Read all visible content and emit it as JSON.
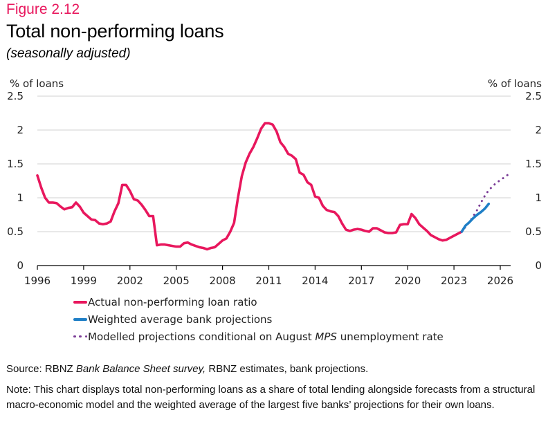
{
  "header": {
    "figure_label": "Figure 2.12",
    "title": "Total non-performing loans",
    "subtitle": "(seasonally adjusted)"
  },
  "chart_data": {
    "type": "line",
    "title": "Total non-performing loans",
    "subtitle": "(seasonally adjusted)",
    "ylabel_left": "% of loans",
    "ylabel_right": "% of loans",
    "xlabel": "",
    "ylim": [
      0,
      2.5
    ],
    "xlim": [
      1996,
      2026.7
    ],
    "yticks": [
      "0",
      "0.5",
      "1",
      "1.5",
      "2",
      "2.5"
    ],
    "xticks": [
      "1996",
      "1999",
      "2002",
      "2005",
      "2008",
      "2011",
      "2014",
      "2017",
      "2020",
      "2023",
      "2026"
    ],
    "grid": true,
    "legend_position": "bottom",
    "series": [
      {
        "name": "Actual non-performing loan ratio",
        "color": "#e8175d",
        "style": "solid",
        "x": [
          1996.0,
          1996.25,
          1996.5,
          1996.75,
          1997.0,
          1997.25,
          1997.5,
          1997.75,
          1998.0,
          1998.25,
          1998.5,
          1998.75,
          1999.0,
          1999.25,
          1999.5,
          1999.75,
          2000.0,
          2000.25,
          2000.5,
          2000.75,
          2001.0,
          2001.25,
          2001.5,
          2001.75,
          2002.0,
          2002.25,
          2002.5,
          2002.75,
          2003.0,
          2003.25,
          2003.5,
          2003.75,
          2004.0,
          2004.25,
          2004.5,
          2004.75,
          2005.0,
          2005.25,
          2005.5,
          2005.75,
          2006.0,
          2006.25,
          2006.5,
          2006.75,
          2007.0,
          2007.25,
          2007.5,
          2007.75,
          2008.0,
          2008.25,
          2008.5,
          2008.75,
          2009.0,
          2009.25,
          2009.5,
          2009.75,
          2010.0,
          2010.25,
          2010.5,
          2010.75,
          2011.0,
          2011.25,
          2011.5,
          2011.75,
          2012.0,
          2012.25,
          2012.5,
          2012.75,
          2013.0,
          2013.25,
          2013.5,
          2013.75,
          2014.0,
          2014.25,
          2014.5,
          2014.75,
          2015.0,
          2015.25,
          2015.5,
          2015.75,
          2016.0,
          2016.25,
          2016.5,
          2016.75,
          2017.0,
          2017.25,
          2017.5,
          2017.75,
          2018.0,
          2018.25,
          2018.5,
          2018.75,
          2019.0,
          2019.25,
          2019.5,
          2019.75,
          2020.0,
          2020.25,
          2020.5,
          2020.75,
          2021.0,
          2021.25,
          2021.5,
          2021.75,
          2022.0,
          2022.25,
          2022.5,
          2022.75,
          2023.0,
          2023.25,
          2023.5
        ],
        "values": [
          1.33,
          1.15,
          1.0,
          0.93,
          0.93,
          0.92,
          0.87,
          0.83,
          0.85,
          0.86,
          0.93,
          0.87,
          0.78,
          0.73,
          0.68,
          0.67,
          0.62,
          0.61,
          0.62,
          0.65,
          0.8,
          0.92,
          1.19,
          1.19,
          1.1,
          0.98,
          0.96,
          0.9,
          0.82,
          0.73,
          0.73,
          0.3,
          0.31,
          0.31,
          0.3,
          0.29,
          0.28,
          0.28,
          0.33,
          0.34,
          0.31,
          0.29,
          0.27,
          0.26,
          0.24,
          0.26,
          0.27,
          0.32,
          0.37,
          0.4,
          0.5,
          0.63,
          1.0,
          1.32,
          1.52,
          1.65,
          1.75,
          1.88,
          2.02,
          2.1,
          2.1,
          2.08,
          1.98,
          1.82,
          1.75,
          1.65,
          1.62,
          1.57,
          1.37,
          1.34,
          1.23,
          1.19,
          1.02,
          1.0,
          0.88,
          0.82,
          0.8,
          0.79,
          0.73,
          0.62,
          0.53,
          0.51,
          0.53,
          0.54,
          0.53,
          0.51,
          0.5,
          0.55,
          0.55,
          0.52,
          0.49,
          0.48,
          0.48,
          0.49,
          0.6,
          0.61,
          0.61,
          0.76,
          0.7,
          0.61,
          0.56,
          0.51,
          0.45,
          0.42,
          0.39,
          0.37,
          0.38,
          0.41,
          0.44,
          0.47,
          0.5
        ]
      },
      {
        "name": "Weighted average bank projections",
        "color": "#1f7fc6",
        "style": "solid",
        "x": [
          2023.5,
          2023.75,
          2024.0,
          2024.25,
          2024.5,
          2024.75,
          2025.0,
          2025.25
        ],
        "values": [
          0.5,
          0.59,
          0.64,
          0.7,
          0.75,
          0.79,
          0.84,
          0.91
        ]
      },
      {
        "name": "Modelled projections conditional on August MPS unemployment rate",
        "color": "#7a3b96",
        "style": "dotted",
        "x": [
          2023.5,
          2023.75,
          2024.0,
          2024.25,
          2024.5,
          2024.75,
          2025.0,
          2025.25,
          2025.5,
          2025.75,
          2026.0,
          2026.25,
          2026.5
        ],
        "values": [
          0.5,
          0.57,
          0.64,
          0.73,
          0.82,
          0.93,
          1.03,
          1.11,
          1.17,
          1.22,
          1.26,
          1.3,
          1.34
        ]
      }
    ]
  },
  "legend": {
    "items": [
      {
        "label": "Actual non-performing loan ratio"
      },
      {
        "label": "Weighted average bank projections"
      },
      {
        "label_before": "Modelled projections conditional on August ",
        "label_italic": "MPS",
        "label_after": " unemployment rate"
      }
    ]
  },
  "footer": {
    "source_prefix": "Source: RBNZ ",
    "source_italic": "Bank Balance Sheet survey,",
    "source_suffix": " RBNZ estimates, bank projections.",
    "note": "Note: This chart displays total non-performing loans as a share of total lending alongside forecasts from a structural macro-economic model and the weighted average of the largest five banks’ projections for their own loans."
  }
}
